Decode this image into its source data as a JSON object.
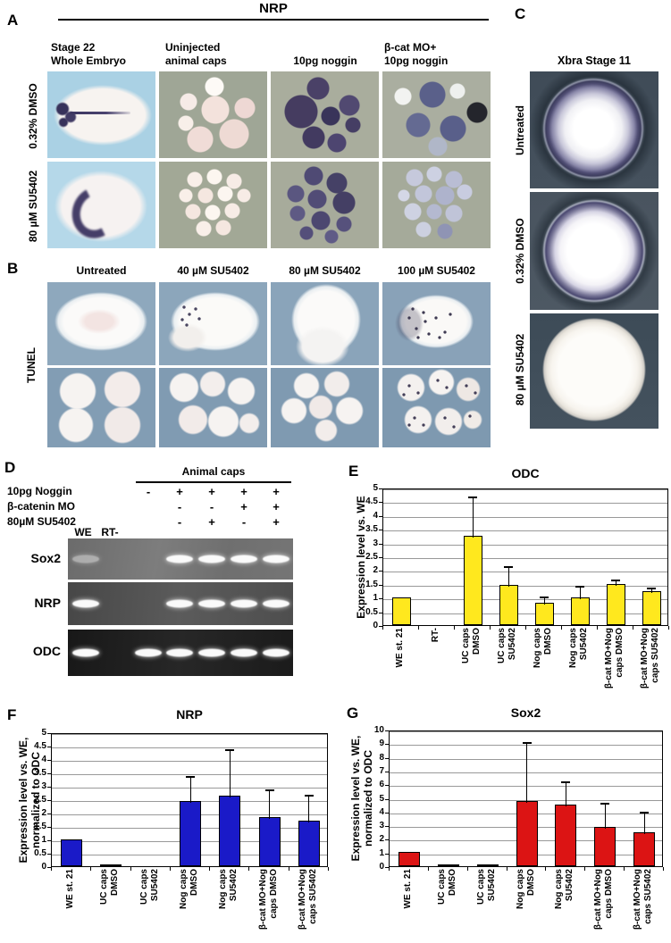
{
  "panels": {
    "A": {
      "label": "A",
      "title": "NRP",
      "column_headers": [
        "Stage 22\nWhole Embryo",
        "Uninjected\nanimal caps",
        "10pg noggin",
        "β-cat MO+\n10pg noggin"
      ],
      "row_headers": [
        "0.32% DMSO",
        "80 µM SU5402"
      ]
    },
    "B": {
      "label": "B",
      "row_header": "TUNEL",
      "column_headers": [
        "Untreated",
        "40 µM SU5402",
        "80 µM SU5402",
        "100 µM SU5402"
      ]
    },
    "C": {
      "label": "C",
      "title": "Xbra Stage 11",
      "row_headers": [
        "Untreated",
        "0.32% DMSO",
        "80 µM SU5402"
      ]
    },
    "D": {
      "label": "D",
      "header": "Animal caps",
      "condition_rows": [
        {
          "label": "10pg Noggin",
          "signs": [
            "-",
            "+",
            "+",
            "+",
            "+"
          ]
        },
        {
          "label": "β-catenin MO",
          "signs": [
            "",
            "-",
            "-",
            "+",
            "+"
          ]
        },
        {
          "label": "80µM SU5402",
          "signs": [
            "",
            "-",
            "+",
            "-",
            "+"
          ]
        }
      ],
      "lane_labels": {
        "we": "WE",
        "rt": "RT-"
      },
      "lane_centers": [
        20,
        56,
        90,
        125,
        161,
        197,
        233
      ],
      "gel_rows": [
        {
          "label": "Sox2",
          "bands": [
            0,
            3,
            4,
            5,
            6
          ],
          "faint": [
            0
          ]
        },
        {
          "label": "NRP",
          "bands": [
            0,
            3,
            4,
            5,
            6
          ],
          "faint": []
        },
        {
          "label": "ODC",
          "bands": [
            0,
            2,
            3,
            4,
            5,
            6
          ],
          "faint": []
        }
      ]
    },
    "E": {
      "label": "E"
    },
    "F": {
      "label": "F"
    },
    "G": {
      "label": "G"
    }
  },
  "chart_data": [
    {
      "type": "bar",
      "title": "ODC",
      "ylabel": "Expression level vs. WE",
      "categories": [
        "WE st. 21",
        "RT-",
        "UC caps\nDMSO",
        "UC caps\nSU5402",
        "Nog caps\nDMSO",
        "Nog caps\nSU5402",
        "β-cat MO+Nog\ncaps DMSO",
        "β-cat MO+Nog\ncaps SU5402"
      ],
      "values": [
        1.0,
        0,
        3.25,
        1.45,
        0.8,
        1.0,
        1.5,
        1.25
      ],
      "errors_upper": [
        0,
        0,
        1.5,
        0.75,
        0.32,
        0.48,
        0.22,
        0.18
      ],
      "ylim": [
        0,
        5
      ],
      "ytick_step": 0.5,
      "bar_color": "#ffe81e",
      "grid": true,
      "legend": "none"
    },
    {
      "type": "bar",
      "title": "NRP",
      "ylabel": "Expression level vs. WE,\nnormalized to ODC",
      "categories": [
        "WE st. 21",
        "UC caps\nDMSO",
        "UC caps\nSU5402",
        "Nog caps\nDMSO",
        "Nog caps\nSU5402",
        "β-cat MO+Nog\ncaps DMSO",
        "β-cat MO+Nog\ncaps SU5402"
      ],
      "values": [
        1.0,
        0.02,
        0,
        2.45,
        2.65,
        1.85,
        1.7
      ],
      "errors_upper": [
        0,
        0,
        0,
        1.0,
        1.8,
        1.1,
        1.05
      ],
      "ylim": [
        0,
        5
      ],
      "ytick_step": 0.5,
      "bar_color": "#1a1ac8",
      "grid": true,
      "legend": "none"
    },
    {
      "type": "bar",
      "title": "Sox2",
      "ylabel": "Expression level vs. WE,\nnormalized to ODC",
      "categories": [
        "WE st. 21",
        "UC caps\nDMSO",
        "UC caps\nSU5402",
        "Nog caps\nDMSO",
        "Nog caps\nSU5402",
        "β-cat MO+Nog\ncaps DMSO",
        "β-cat MO+Nog\ncaps SU5402"
      ],
      "values": [
        1.05,
        0.05,
        0.08,
        4.75,
        4.5,
        2.85,
        2.5
      ],
      "errors_upper": [
        0,
        0,
        0,
        4.45,
        1.85,
        1.9,
        1.6
      ],
      "ylim": [
        0,
        10
      ],
      "ytick_step": 1,
      "bar_color": "#dc1414",
      "grid": true,
      "legend": "none"
    }
  ]
}
